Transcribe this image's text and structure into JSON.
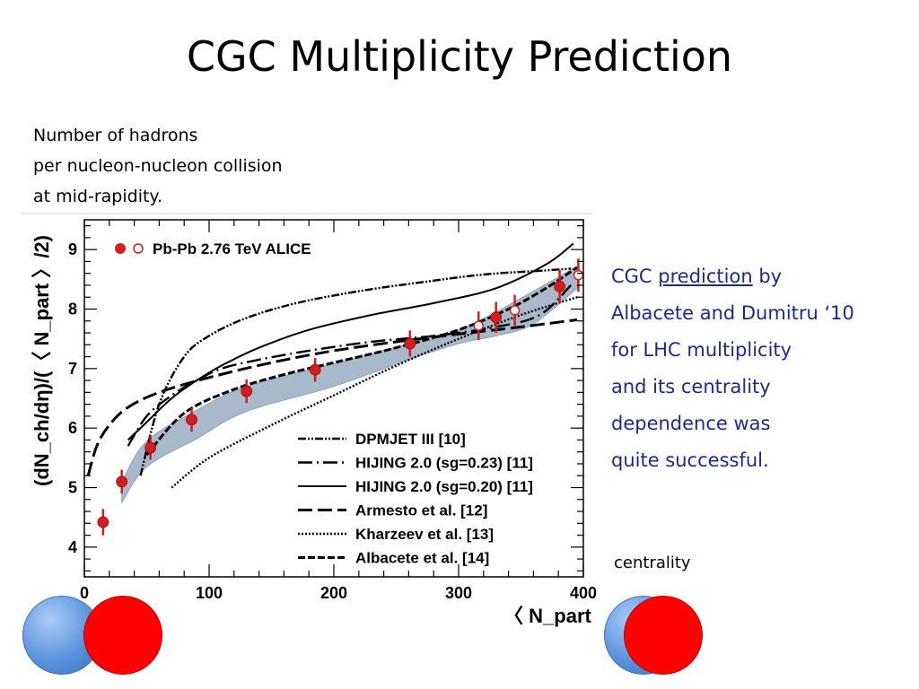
{
  "slide": {
    "title": "CGC Multiplicity Prediction",
    "annotation_lines": [
      "Number of hadrons",
      "per nucleon-nucleon collision",
      "at mid-rapidity."
    ],
    "side_text": {
      "line1_pre": "CGC ",
      "line1_link": "prediction",
      "line1_post": " by",
      "lines": [
        "Albacete and Dumitru ‘10",
        "for LHC multiplicity",
        "and its centrality",
        "dependence was",
        "quite successful."
      ]
    },
    "centrality_label": "centrality",
    "colors": {
      "accent_text": "#1c2a8c",
      "data_marker": "#d41e1e",
      "band": "#a9b9cc",
      "circle_blue": "#5b93dc",
      "circle_red": "#ff0000"
    }
  },
  "chart_data": {
    "type": "line",
    "title": "",
    "xlabel": "〈 N_part 〉",
    "ylabel": "(dN_ch/dη)/(〈 N_part 〉/2)",
    "xlim": [
      0,
      400
    ],
    "ylim": [
      3.5,
      9.5
    ],
    "x_ticks": [
      "0",
      "100",
      "200",
      "300",
      "400"
    ],
    "y_ticks": [
      "4",
      "5",
      "6",
      "7",
      "8",
      "9"
    ],
    "grid": false,
    "legend_position": "bottom-right",
    "data_legend": "Pb-Pb 2.76 TeV ALICE",
    "data": {
      "name": "Pb-Pb 2.76 TeV ALICE",
      "x": [
        15,
        30,
        53,
        86,
        130,
        185,
        261,
        316,
        330,
        345,
        381,
        396
      ],
      "y": [
        4.42,
        5.1,
        5.67,
        6.14,
        6.62,
        6.98,
        7.42,
        7.72,
        7.86,
        7.98,
        8.38,
        8.57
      ],
      "err": [
        0.22,
        0.2,
        0.2,
        0.2,
        0.2,
        0.2,
        0.22,
        0.24,
        0.26,
        0.26,
        0.28,
        0.28
      ],
      "open": [
        false,
        false,
        false,
        false,
        false,
        false,
        false,
        true,
        false,
        true,
        false,
        true
      ]
    },
    "band": {
      "x": [
        30,
        50,
        90,
        130,
        200,
        260,
        300,
        330,
        360,
        395
      ],
      "low": [
        4.75,
        5.35,
        5.82,
        6.28,
        6.7,
        7.15,
        7.42,
        7.55,
        7.75,
        8.35
      ],
      "high": [
        5.1,
        5.78,
        6.3,
        6.7,
        7.08,
        7.42,
        7.65,
        7.95,
        8.3,
        8.72
      ]
    },
    "series": [
      {
        "name": "DPMJET III [10]",
        "dash": "9,2,2,2,2,2",
        "width": 2.4,
        "x": [
          45,
          60,
          80,
          100,
          130,
          170,
          220,
          270,
          320,
          370,
          390
        ],
        "y": [
          5.2,
          6.4,
          7.2,
          7.55,
          7.85,
          8.1,
          8.3,
          8.45,
          8.58,
          8.65,
          8.68
        ]
      },
      {
        "name": "HIJING 2.0 (sg=0.23) [11]",
        "dash": "16,5,2,5",
        "width": 2.4,
        "x": [
          35,
          50,
          70,
          90,
          110,
          140,
          180,
          230,
          280,
          330,
          365,
          390
        ],
        "y": [
          5.7,
          6.2,
          6.55,
          6.8,
          7.0,
          7.15,
          7.3,
          7.45,
          7.55,
          7.7,
          7.9,
          8.4
        ]
      },
      {
        "name": "HIJING 2.0 (sg=0.20) [11]",
        "dash": "",
        "width": 2.0,
        "x": [
          35,
          50,
          70,
          90,
          110,
          140,
          180,
          230,
          280,
          330,
          370,
          392
        ],
        "y": [
          5.8,
          6.1,
          6.5,
          6.8,
          7.05,
          7.35,
          7.65,
          7.9,
          8.1,
          8.35,
          8.75,
          9.1
        ]
      },
      {
        "name": "Armesto et al. [12]",
        "dash": "16,6",
        "width": 3.0,
        "x": [
          3,
          10,
          20,
          35,
          60,
          100,
          150,
          200,
          250,
          300,
          350,
          395
        ],
        "y": [
          5.2,
          5.7,
          6.05,
          6.35,
          6.6,
          6.85,
          7.1,
          7.3,
          7.45,
          7.58,
          7.7,
          7.82
        ]
      },
      {
        "name": "Kharzeev et al. [13]",
        "dash": "2,2",
        "width": 2.4,
        "x": [
          70,
          100,
          150,
          200,
          250,
          300,
          350,
          395
        ],
        "y": [
          5.0,
          5.5,
          6.05,
          6.55,
          7.05,
          7.5,
          7.9,
          8.2
        ]
      },
      {
        "name": "Albacete et al. [14]",
        "dash": "8,3",
        "width": 3.0,
        "x": [
          50,
          80,
          120,
          160,
          200,
          250,
          300,
          340,
          370,
          395
        ],
        "y": [
          5.55,
          6.25,
          6.65,
          6.9,
          7.1,
          7.35,
          7.65,
          8.0,
          8.35,
          8.7
        ]
      }
    ]
  }
}
